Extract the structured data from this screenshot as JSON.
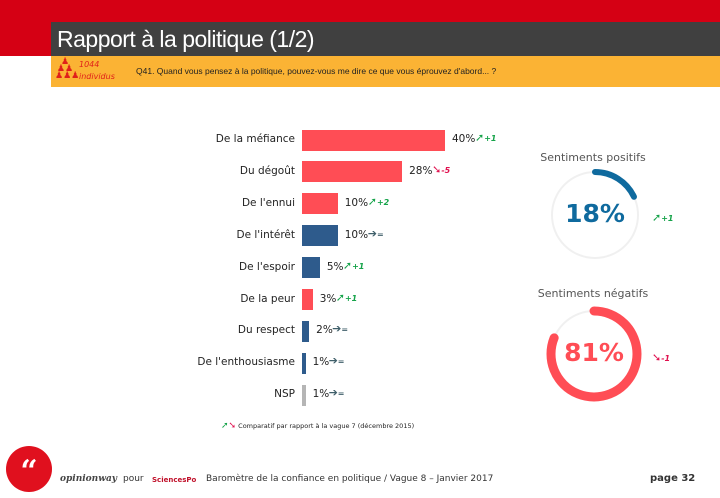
{
  "header": {
    "title": "Rapport à la politique (1/2)",
    "sample_count": "1044",
    "sample_unit": "individus",
    "people_icon": "people-pyramid-icon",
    "question": "Q41. Quand vous pensez à la politique, pouvez-vous me dire ce que vous éprouvez d'abord... ?"
  },
  "chart_data": {
    "type": "bar",
    "orientation": "horizontal",
    "categories": [
      "De la méfiance",
      "Du dégoût",
      "De l'ennui",
      "De l'intérêt",
      "De l'espoir",
      "De la peur",
      "Du respect",
      "De l'enthousiasme",
      "NSP"
    ],
    "values": [
      40,
      28,
      10,
      10,
      5,
      3,
      2,
      1,
      1
    ],
    "labels": [
      "40%",
      "28%",
      "10%",
      "10%",
      "5%",
      "3%",
      "2%",
      "1%",
      "1%"
    ],
    "groups": [
      "neg",
      "neg",
      "neg",
      "pos",
      "pos",
      "neg",
      "pos",
      "pos",
      "nsp"
    ],
    "deltas": [
      "+1",
      "-5",
      "+2",
      "=",
      "+1",
      "+1",
      "=",
      "=",
      "="
    ],
    "colors": {
      "neg": "#ff4d55",
      "pos": "#2e5b8c",
      "nsp": "#b5b5b5",
      "up": "#16a34a",
      "down": "#e0114f",
      "same": "#3f5f6a"
    }
  },
  "summary": {
    "positive": {
      "title": "Sentiments positifs",
      "value": 18,
      "label": "18%",
      "delta": "+1",
      "color": "#0f6a9e"
    },
    "negative": {
      "title": "Sentiments négatifs",
      "value": 81,
      "label": "81%",
      "delta": "-1",
      "color": "#ff4d55"
    }
  },
  "legend": "Comparatif par rapport à la vague 7 (décembre 2015)",
  "footer": {
    "brand": "opinionway",
    "pour": "pour",
    "partner": "SciencesPo",
    "text": "Baromètre de la confiance en politique / Vague 8 – Janvier 2017",
    "page": "page 32"
  }
}
